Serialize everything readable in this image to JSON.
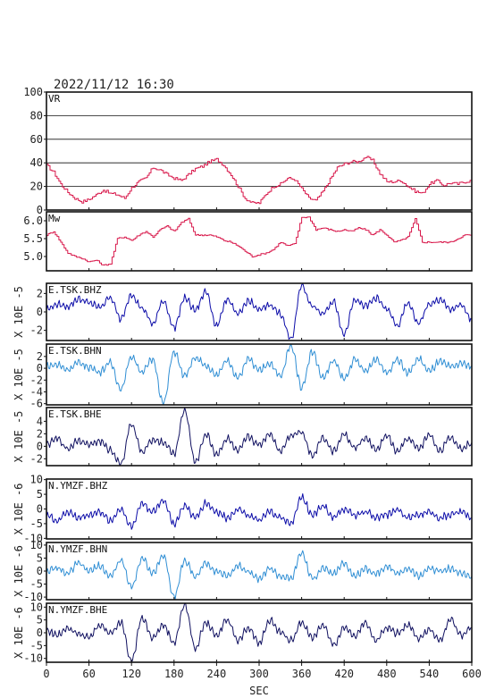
{
  "header": {
    "timestamp": "2022/11/12  16:30"
  },
  "colors": {
    "vr": "#d8174a",
    "mw": "#d8174a",
    "trace_dark": "#0b0ba8",
    "trace_light": "#2f8ed4",
    "trace_navy": "#101060",
    "frame": "#111111"
  },
  "chart_data": [
    {
      "type": "line",
      "panel": "VR",
      "label": "VR",
      "ylabel": "",
      "xlim": [
        0,
        600
      ],
      "ylim": [
        0,
        100
      ],
      "yticks": [
        "0",
        "20",
        "40",
        "60",
        "80",
        "100"
      ],
      "grid": "horizontal",
      "step": true,
      "x": [
        0,
        10,
        20,
        30,
        40,
        50,
        60,
        70,
        80,
        90,
        100,
        110,
        120,
        130,
        140,
        150,
        160,
        170,
        180,
        190,
        200,
        210,
        220,
        230,
        240,
        250,
        260,
        270,
        280,
        290,
        300,
        310,
        320,
        330,
        340,
        350,
        360,
        370,
        380,
        390,
        400,
        410,
        420,
        430,
        440,
        450,
        460,
        470,
        480,
        490,
        500,
        510,
        520,
        530,
        540,
        550,
        560,
        570,
        580,
        590,
        600
      ],
      "values": [
        38,
        32,
        22,
        15,
        10,
        7,
        9,
        13,
        17,
        14,
        13,
        10,
        19,
        24,
        27,
        36,
        34,
        30,
        27,
        25,
        30,
        35,
        37,
        41,
        43,
        38,
        30,
        20,
        10,
        6,
        6,
        14,
        20,
        22,
        27,
        26,
        18,
        10,
        8,
        16,
        26,
        36,
        39,
        41,
        41,
        45,
        42,
        31,
        24,
        24,
        25,
        20,
        16,
        14,
        22,
        25,
        21,
        23,
        22,
        24,
        25
      ]
    },
    {
      "type": "line",
      "panel": "Mw",
      "label": "Mw",
      "ylabel": "",
      "xlim": [
        0,
        600
      ],
      "ylim": [
        4.6,
        6.25
      ],
      "yticks": [
        "5.0",
        "5.5",
        "6.0"
      ],
      "grid": "none",
      "step": true,
      "x": [
        0,
        10,
        20,
        30,
        40,
        50,
        60,
        70,
        80,
        90,
        100,
        110,
        120,
        130,
        140,
        150,
        160,
        170,
        180,
        190,
        200,
        210,
        220,
        230,
        240,
        250,
        260,
        270,
        280,
        290,
        300,
        310,
        320,
        330,
        340,
        350,
        360,
        370,
        380,
        390,
        400,
        410,
        420,
        430,
        440,
        450,
        460,
        470,
        480,
        490,
        500,
        510,
        520,
        530,
        540,
        550,
        560,
        570,
        580,
        590,
        600
      ],
      "values": [
        5.6,
        5.7,
        5.4,
        5.1,
        5.0,
        4.95,
        4.85,
        4.9,
        4.75,
        4.8,
        5.5,
        5.55,
        5.45,
        5.6,
        5.7,
        5.55,
        5.75,
        5.85,
        5.7,
        5.95,
        6.05,
        5.6,
        5.6,
        5.6,
        5.55,
        5.45,
        5.4,
        5.3,
        5.15,
        5.0,
        5.05,
        5.1,
        5.2,
        5.4,
        5.3,
        5.35,
        6.1,
        6.1,
        5.75,
        5.8,
        5.75,
        5.7,
        5.75,
        5.7,
        5.8,
        5.75,
        5.6,
        5.75,
        5.6,
        5.4,
        5.45,
        5.55,
        6.05,
        5.4,
        5.4,
        5.4,
        5.4,
        5.4,
        5.5,
        5.6,
        5.6
      ]
    },
    {
      "type": "line",
      "panel": "E.TSK.BHZ",
      "label": "E.TSK.BHZ",
      "ylabel": "X 10E -5",
      "xlim": [
        0,
        600
      ],
      "ylim": [
        -3.1,
        3.1
      ],
      "yticks": [
        "-2",
        "0",
        "2"
      ],
      "grid": "none",
      "x": [
        0,
        15,
        30,
        45,
        60,
        75,
        90,
        105,
        120,
        135,
        150,
        165,
        180,
        195,
        210,
        225,
        240,
        255,
        270,
        285,
        300,
        315,
        330,
        345,
        360,
        375,
        390,
        405,
        420,
        435,
        450,
        465,
        480,
        495,
        510,
        525,
        540,
        555,
        570,
        585,
        600
      ],
      "values": [
        0.3,
        0.8,
        0.6,
        1.4,
        1.0,
        0.5,
        1.6,
        -0.8,
        1.9,
        0.4,
        -1.3,
        1.2,
        -1.7,
        1.5,
        0.2,
        2.2,
        -1.5,
        1.4,
        -0.3,
        1.2,
        0.2,
        0.8,
        -0.2,
        -3.0,
        2.9,
        0.6,
        -0.2,
        1.1,
        -2.4,
        1.4,
        0.6,
        1.5,
        0.3,
        -1.5,
        0.9,
        -1.2,
        0.8,
        1.3,
        0.3,
        0.7,
        -0.8
      ]
    },
    {
      "type": "line",
      "panel": "E.TSK.BHN",
      "label": "E.TSK.BHN",
      "ylabel": "X 10E -5",
      "xlim": [
        0,
        600
      ],
      "ylim": [
        -6.2,
        4.1
      ],
      "yticks": [
        "-6",
        "-4",
        "-2",
        "0",
        "2"
      ],
      "grid": "none",
      "x": [
        0,
        15,
        30,
        45,
        60,
        75,
        90,
        105,
        120,
        135,
        150,
        165,
        180,
        195,
        210,
        225,
        240,
        255,
        270,
        285,
        300,
        315,
        330,
        345,
        360,
        375,
        390,
        405,
        420,
        435,
        450,
        465,
        480,
        495,
        510,
        525,
        540,
        555,
        570,
        585,
        600
      ],
      "values": [
        0.4,
        0.6,
        -0.2,
        0.9,
        0.2,
        -0.6,
        0.9,
        -3.5,
        2.0,
        -0.6,
        1.5,
        -6.0,
        2.8,
        -1.4,
        1.8,
        0.4,
        -1.2,
        1.4,
        -1.6,
        1.5,
        -0.4,
        0.9,
        -1.4,
        3.9,
        -3.2,
        2.8,
        -1.6,
        1.2,
        -1.8,
        1.4,
        -0.5,
        1.6,
        -0.7,
        1.5,
        -0.8,
        1.6,
        -0.5,
        1.1,
        0.2,
        0.8,
        0.4
      ]
    },
    {
      "type": "line",
      "panel": "E.TSK.BHE",
      "label": "E.TSK.BHE",
      "ylabel": "X 10E -5",
      "xlim": [
        0,
        600
      ],
      "ylim": [
        -3.1,
        6.2
      ],
      "yticks": [
        "-2",
        "0",
        "2",
        "4"
      ],
      "grid": "none",
      "x": [
        0,
        15,
        30,
        45,
        60,
        75,
        90,
        105,
        120,
        135,
        150,
        165,
        180,
        195,
        210,
        225,
        240,
        255,
        270,
        285,
        300,
        315,
        330,
        345,
        360,
        375,
        390,
        405,
        420,
        435,
        450,
        465,
        480,
        495,
        510,
        525,
        540,
        555,
        570,
        585,
        600
      ],
      "values": [
        0.3,
        1.2,
        -0.4,
        1.0,
        0.3,
        0.8,
        -0.6,
        -2.8,
        3.6,
        -1.0,
        1.1,
        0.6,
        -1.2,
        5.8,
        -2.6,
        1.9,
        -1.3,
        1.2,
        -0.8,
        1.5,
        0.2,
        2.0,
        -0.7,
        1.8,
        2.3,
        -1.5,
        1.4,
        -0.8,
        1.9,
        -0.3,
        1.3,
        -0.6,
        1.7,
        -0.9,
        1.2,
        -0.4,
        1.8,
        -0.7,
        1.4,
        -0.3,
        0.6
      ]
    },
    {
      "type": "line",
      "panel": "N.YMZF.BHZ",
      "label": "N.YMZF.BHZ",
      "ylabel": "X 10E -6",
      "xlim": [
        0,
        600
      ],
      "ylim": [
        -10.2,
        10.2
      ],
      "yticks": [
        "-10",
        "-5",
        "0",
        "5",
        "10"
      ],
      "grid": "none",
      "x": [
        0,
        15,
        30,
        45,
        60,
        75,
        90,
        105,
        120,
        135,
        150,
        165,
        180,
        195,
        210,
        225,
        240,
        255,
        270,
        285,
        300,
        315,
        330,
        345,
        360,
        375,
        390,
        405,
        420,
        435,
        450,
        465,
        480,
        495,
        510,
        525,
        540,
        555,
        570,
        585,
        600
      ],
      "values": [
        -2,
        -4,
        -1,
        -3,
        -2,
        -1,
        -4,
        0,
        -6,
        2,
        -1,
        3,
        -5,
        1,
        -3,
        2,
        -1,
        -3,
        0,
        -2,
        -4,
        -1,
        -3,
        -5,
        4,
        -2,
        1,
        -3,
        0,
        -2,
        -1,
        -3,
        -2,
        0,
        -3,
        -2,
        -1,
        -3,
        -2,
        -1,
        -3
      ]
    },
    {
      "type": "line",
      "panel": "N.YMZF.BHN",
      "label": "N.YMZF.BHN",
      "ylabel": "X 10E -6",
      "xlim": [
        0,
        600
      ],
      "ylim": [
        -11,
        11
      ],
      "yticks": [
        "-10",
        "-5",
        "0",
        "5",
        "10"
      ],
      "grid": "none",
      "x": [
        0,
        15,
        30,
        45,
        60,
        75,
        90,
        105,
        120,
        135,
        150,
        165,
        180,
        195,
        210,
        225,
        240,
        255,
        270,
        285,
        300,
        315,
        330,
        345,
        360,
        375,
        390,
        405,
        420,
        435,
        450,
        465,
        480,
        495,
        510,
        525,
        540,
        555,
        570,
        585,
        600
      ],
      "values": [
        0,
        1,
        -1,
        3,
        0,
        2,
        -2,
        4,
        -6,
        5,
        -1,
        6,
        -10,
        4,
        -2,
        3,
        0,
        -2,
        2,
        0,
        -3,
        1,
        -2,
        -3,
        7,
        -3,
        1,
        -1,
        3,
        -2,
        1,
        -1,
        2,
        -1,
        1,
        -2,
        1,
        0,
        1,
        -1,
        -2
      ]
    },
    {
      "type": "line",
      "panel": "N.YMZF.BHE",
      "label": "N.YMZF.BHE",
      "ylabel": "X 10E -6",
      "xlim": [
        0,
        600
      ],
      "ylim": [
        -11.5,
        11.5
      ],
      "yticks": [
        "-10",
        "-5",
        "0",
        "5",
        "10"
      ],
      "grid": "none",
      "x": [
        0,
        15,
        30,
        45,
        60,
        75,
        90,
        105,
        120,
        135,
        150,
        165,
        180,
        195,
        210,
        225,
        240,
        255,
        270,
        285,
        300,
        315,
        330,
        345,
        360,
        375,
        390,
        405,
        420,
        435,
        450,
        465,
        480,
        495,
        510,
        525,
        540,
        555,
        570,
        585,
        600
      ],
      "values": [
        1,
        -1,
        2,
        0,
        -2,
        3,
        0,
        4,
        -11,
        6,
        -2,
        3,
        -4,
        11,
        -6,
        4,
        -1,
        5,
        -3,
        2,
        -4,
        5,
        0,
        -3,
        4,
        -2,
        3,
        -5,
        2,
        -1,
        4,
        -3,
        2,
        0,
        3,
        -2,
        1,
        -3,
        5,
        -1,
        2
      ]
    }
  ],
  "x_axis": {
    "label": "SEC",
    "ticks": [
      "0",
      "60",
      "120",
      "180",
      "240",
      "300",
      "360",
      "420",
      "480",
      "540",
      "600"
    ]
  }
}
